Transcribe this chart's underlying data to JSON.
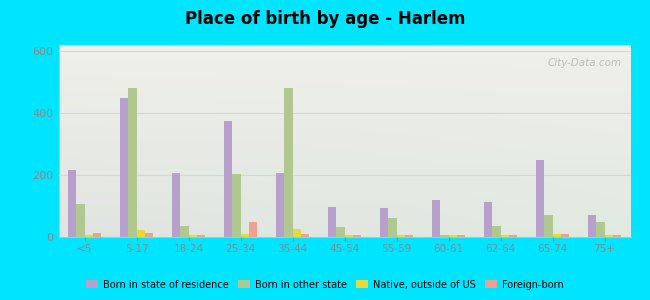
{
  "title": "Place of birth by age - Harlem",
  "categories": [
    "<5",
    "5-17",
    "18-24",
    "25-34",
    "35-44",
    "45-54",
    "55-59",
    "60-61",
    "62-64",
    "65-74",
    "75+"
  ],
  "series": {
    "Born in state of residence": [
      215,
      450,
      207,
      375,
      207,
      97,
      95,
      118,
      112,
      250,
      70
    ],
    "Born in other state": [
      107,
      480,
      35,
      205,
      480,
      33,
      60,
      5,
      35,
      70,
      50
    ],
    "Native, outside of US": [
      5,
      22,
      5,
      10,
      25,
      5,
      8,
      5,
      5,
      10,
      5
    ],
    "Foreign-born": [
      12,
      12,
      5,
      50,
      10,
      8,
      8,
      5,
      5,
      10,
      5
    ]
  },
  "colors": {
    "Born in state of residence": "#b8a0cc",
    "Born in other state": "#b0c890",
    "Native, outside of US": "#e8d840",
    "Foreign-born": "#f0a090"
  },
  "ylim": [
    0,
    620
  ],
  "yticks": [
    0,
    200,
    400,
    600
  ],
  "bg_top_color": "#e0f5e0",
  "bg_bottom_color": "#b8ecc8",
  "outer_background": "#00e5ff",
  "watermark": "City-Data.com",
  "bar_width": 0.16,
  "tick_color": "#888888",
  "grid_color": "#ccddcc",
  "spine_color": "#aaccaa"
}
